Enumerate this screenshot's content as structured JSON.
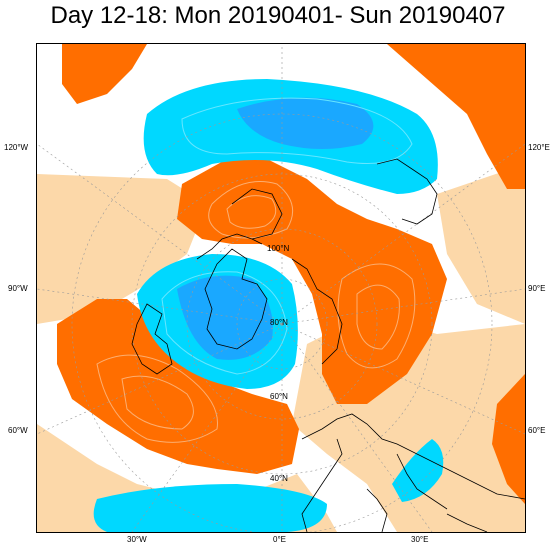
{
  "title": "Day 12-18: Mon 20190401- Sun 20190407",
  "labels": {
    "lon_120w": "120°W",
    "lon_90w": "90°W",
    "lon_60w": "60°W",
    "lon_30w": "30°W",
    "lon_0": "0°E",
    "lon_30e": "30°E",
    "lon_60e": "60°E",
    "lon_90e": "90°E",
    "lon_120e": "120°E",
    "lat_100n": "100°N",
    "lat_80n": "80°N",
    "lat_60n": "60°N",
    "lat_40n": "40°N"
  },
  "colors": {
    "positive_strong": "#ff6e00",
    "positive_light": "#fcd8a9",
    "negative_strong": "#00d8ff",
    "negative_core": "#1aa8ff",
    "land_outline": "#000000",
    "grid": "#9a9a9a"
  }
}
